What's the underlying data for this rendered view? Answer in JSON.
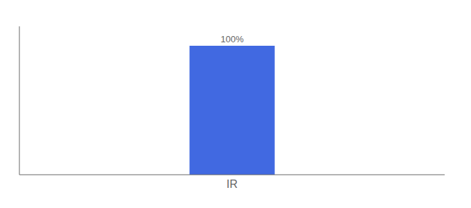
{
  "chart_data": {
    "type": "bar",
    "categories": [
      "IR"
    ],
    "values": [
      100
    ],
    "value_labels": [
      "100%"
    ],
    "color": "#4169e1",
    "ylim": [
      0,
      115
    ],
    "data_labels": true,
    "tick_labels": "x"
  }
}
